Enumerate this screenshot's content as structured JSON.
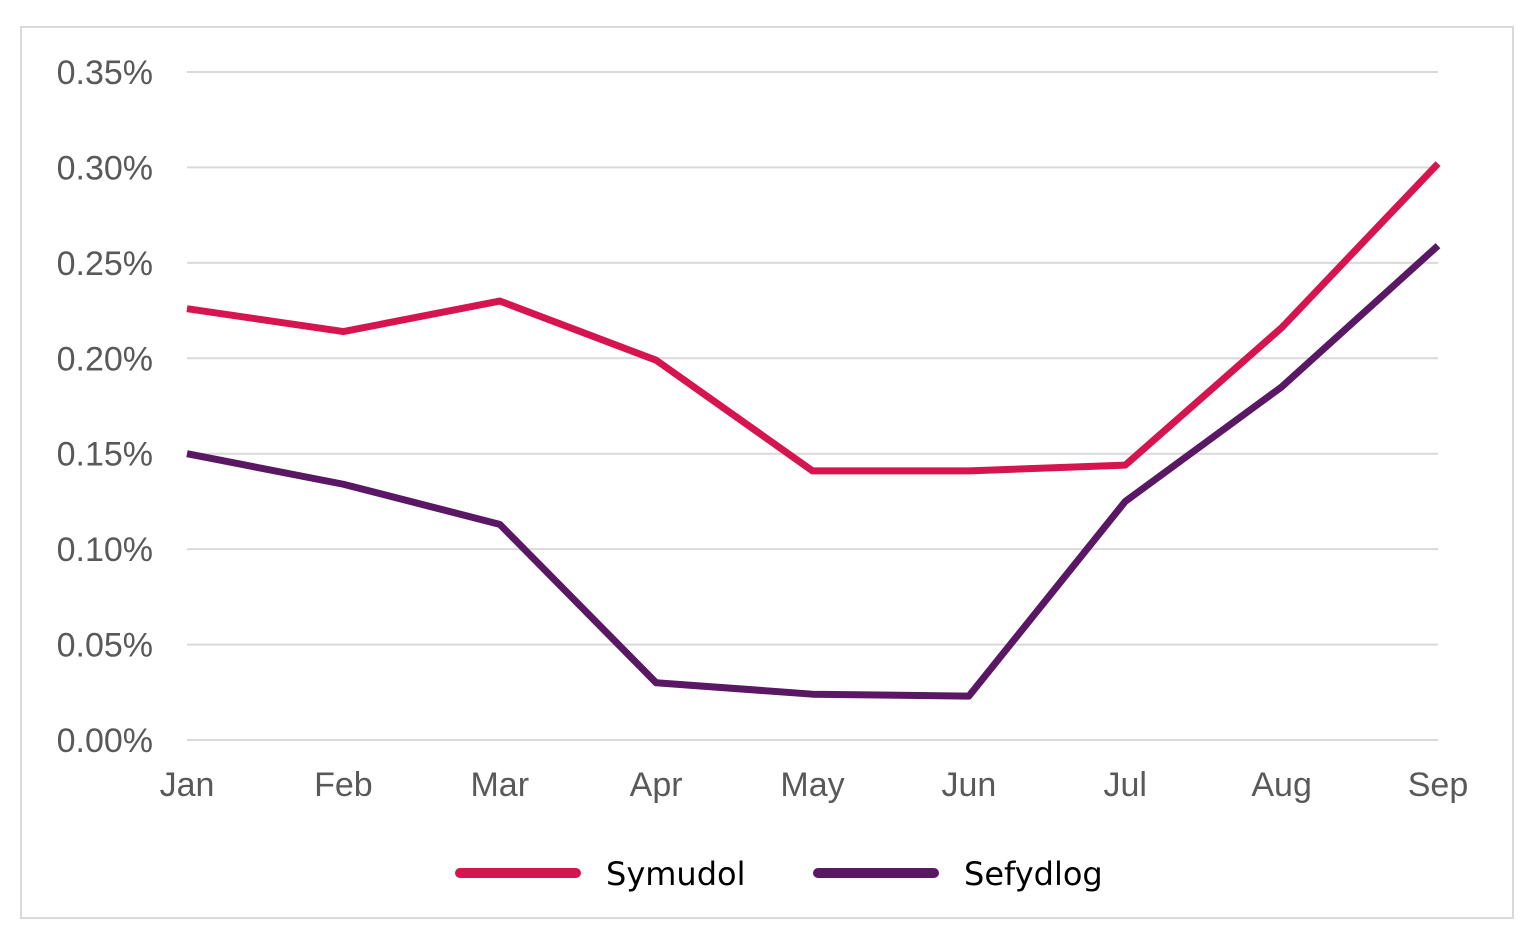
{
  "chart_data": {
    "type": "line",
    "title": "",
    "xlabel": "",
    "ylabel": "",
    "categories": [
      "Jan",
      "Feb",
      "Mar",
      "Apr",
      "May",
      "Jun",
      "Jul",
      "Aug",
      "Sep"
    ],
    "y_ticks": [
      "0.00%",
      "0.05%",
      "0.10%",
      "0.15%",
      "0.20%",
      "0.25%",
      "0.30%",
      "0.35%"
    ],
    "ylim": [
      0,
      0.35
    ],
    "y_unit": "%",
    "grid": true,
    "legend_position": "bottom",
    "series": [
      {
        "name": "Symudol",
        "color": "#d6144f",
        "values": [
          0.226,
          0.214,
          0.23,
          0.199,
          0.141,
          0.141,
          0.144,
          0.216,
          0.302
        ]
      },
      {
        "name": "Sefydlog",
        "color": "#5a1763",
        "values": [
          0.15,
          0.134,
          0.113,
          0.03,
          0.024,
          0.023,
          0.125,
          0.185,
          0.259
        ]
      }
    ]
  }
}
